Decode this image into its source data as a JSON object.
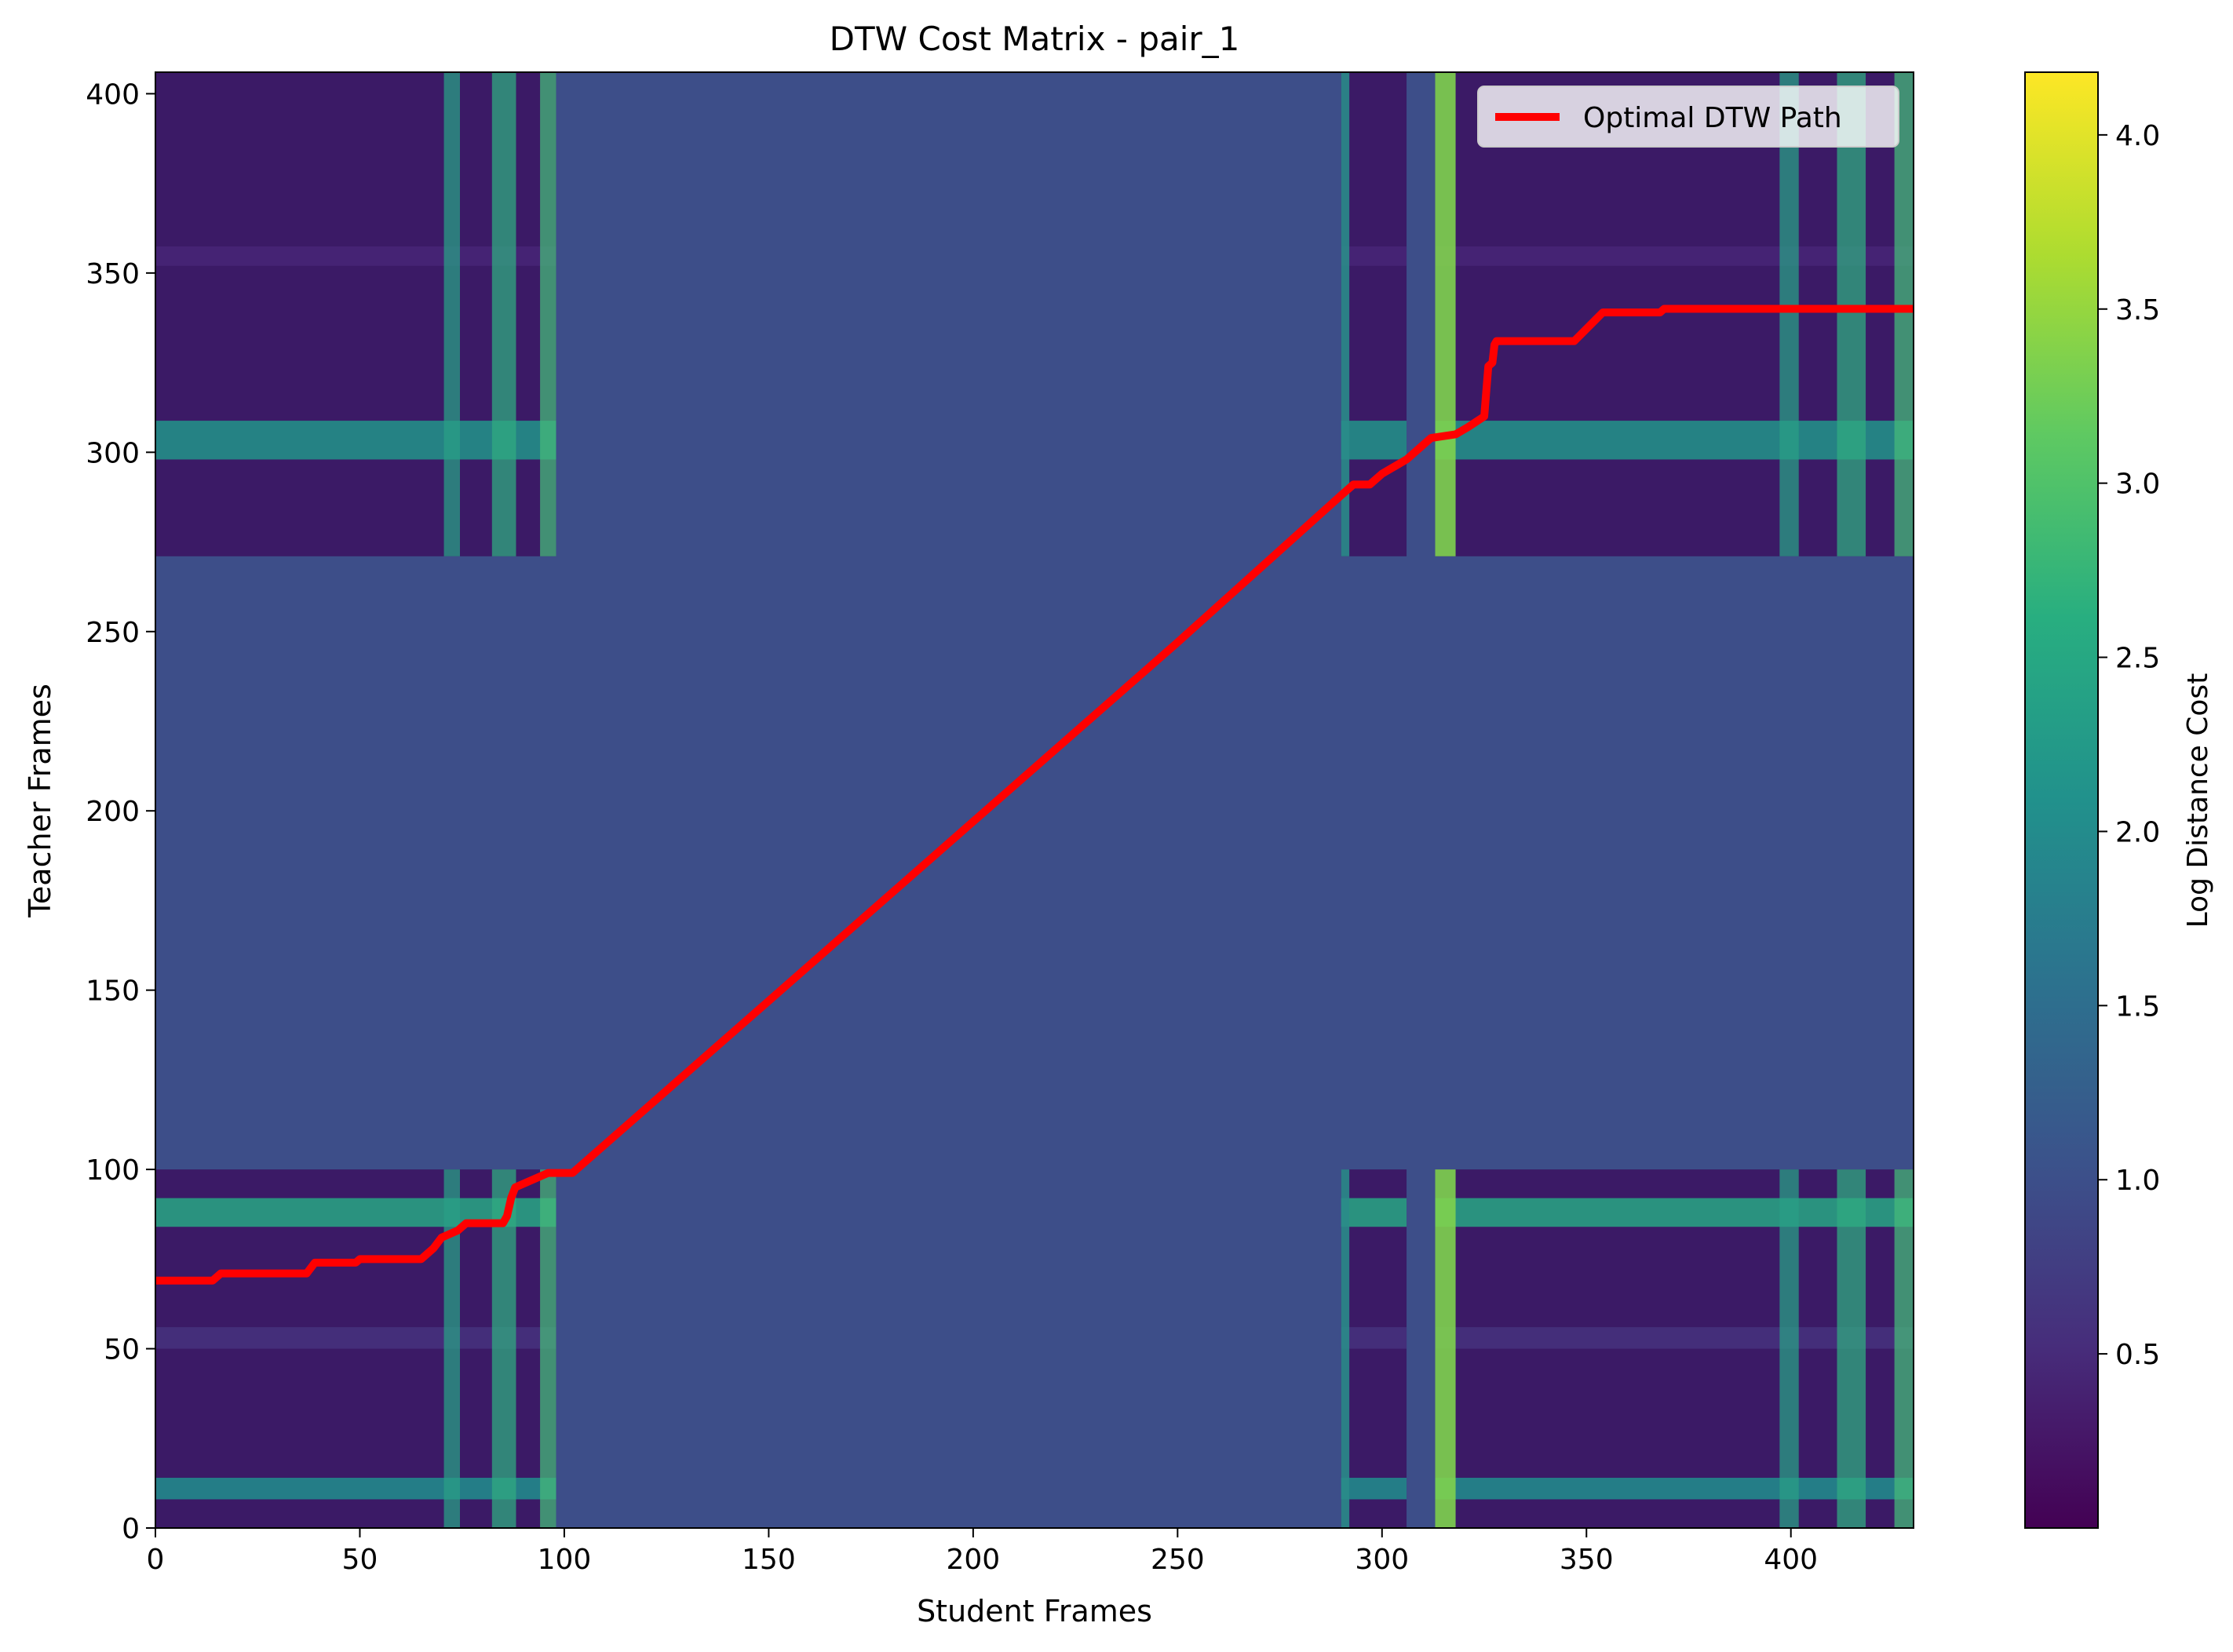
{
  "chart_data": {
    "type": "heatmap",
    "title": "DTW Cost Matrix - pair_1",
    "xlabel": "Student Frames",
    "ylabel": "Teacher Frames",
    "xlim": [
      0,
      430
    ],
    "ylim": [
      0,
      406
    ],
    "x_ticks": [
      0,
      50,
      100,
      150,
      200,
      250,
      300,
      350,
      400
    ],
    "y_ticks": [
      0,
      50,
      100,
      150,
      200,
      250,
      300,
      350,
      400
    ],
    "colorbar": {
      "label": "Log Distance Cost",
      "colormap": "viridis",
      "range": [
        0.0,
        4.18
      ],
      "ticks": [
        0.5,
        1.0,
        1.5,
        2.0,
        2.5,
        3.0,
        3.5,
        4.0
      ]
    },
    "background_value": 0.92,
    "regions": [
      {
        "x": [
          0,
          98
        ],
        "y": [
          0,
          100
        ]
      },
      {
        "x": [
          0,
          98
        ],
        "y": [
          271,
          406
        ]
      },
      {
        "x": [
          290,
          306
        ],
        "y": [
          0,
          100
        ]
      },
      {
        "x": [
          313,
          430
        ],
        "y": [
          0,
          100
        ]
      },
      {
        "x": [
          290,
          306
        ],
        "y": [
          271,
          406
        ]
      },
      {
        "x": [
          313,
          430
        ],
        "y": [
          271,
          406
        ]
      }
    ],
    "legend": {
      "position": "top-right",
      "entries": [
        {
          "label": "Optimal DTW Path",
          "color": "#ff0000"
        }
      ]
    },
    "series": [
      {
        "name": "Optimal DTW Path",
        "color": "#ff0000",
        "x": [
          0,
          14,
          16,
          37,
          39,
          49,
          50,
          65,
          68,
          70,
          74,
          76,
          85,
          86,
          87,
          88,
          92,
          96,
          102,
          150,
          200,
          250,
          290,
          293,
          297,
          300,
          306,
          312,
          318,
          321,
          325,
          326,
          327,
          327.5,
          328,
          336,
          347,
          354,
          368,
          369,
          430
        ],
        "y": [
          69,
          69,
          71,
          71,
          74,
          74,
          75,
          75,
          78,
          81,
          83,
          85,
          85,
          87,
          92,
          95,
          97,
          99,
          99,
          147,
          197,
          247,
          288,
          291,
          291,
          294,
          298,
          304,
          305,
          307,
          310,
          324,
          325,
          330,
          331,
          331,
          331,
          339,
          339,
          340,
          340
        ]
      }
    ]
  }
}
